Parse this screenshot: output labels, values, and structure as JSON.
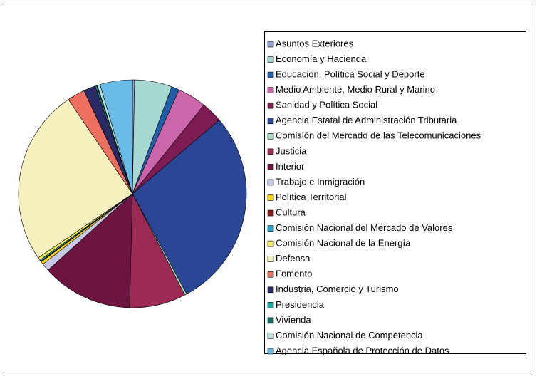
{
  "chart_data": {
    "type": "pie",
    "categories": [
      "Asuntos Exteriores",
      "Economía y Hacienda",
      "Educación, Política Social y Deporte",
      "Medio Ambiente, Medio Rural y Marino",
      "Sanidad y Política Social",
      "Agencia Estatal de Administración Tributaria",
      "Comisión del Mercado de las Telecomunicaciones",
      "Justicia",
      "Interior",
      "Trabajo e Inmigración",
      "Política Territorial",
      "Cultura",
      "Comisión Nacional del Mercado de Valores",
      "Comisión Nacional de la Energía",
      "Defensa",
      "Fomento",
      "Industria, Comercio y Turismo",
      "Presidencia",
      "Vivienda",
      "Comisión Nacional de Competencia",
      "Agencia Española de Protección de Datos"
    ],
    "values": [
      0.3,
      5.3,
      1.1,
      4.1,
      3,
      28.3,
      0.3,
      8,
      12.9,
      1.1,
      0.4,
      0.1,
      0.2,
      0.4,
      25,
      2.5,
      1.7,
      0.2,
      0.1,
      0.4,
      4.6
    ],
    "colors": [
      "#8f9fd4",
      "#a8d8d2",
      "#1f5fa8",
      "#cc66aa",
      "#7d1d53",
      "#2a4795",
      "#a6d9b9",
      "#9b2a55",
      "#6b1540",
      "#c6c8e6",
      "#ffd400",
      "#8a1c1c",
      "#1aa3c6",
      "#f2e85c",
      "#f5f2c0",
      "#ee7060",
      "#2a2a66",
      "#1aa7a0",
      "#0d6b60",
      "#b8e0dc",
      "#69bce6"
    ],
    "legend": "right"
  }
}
